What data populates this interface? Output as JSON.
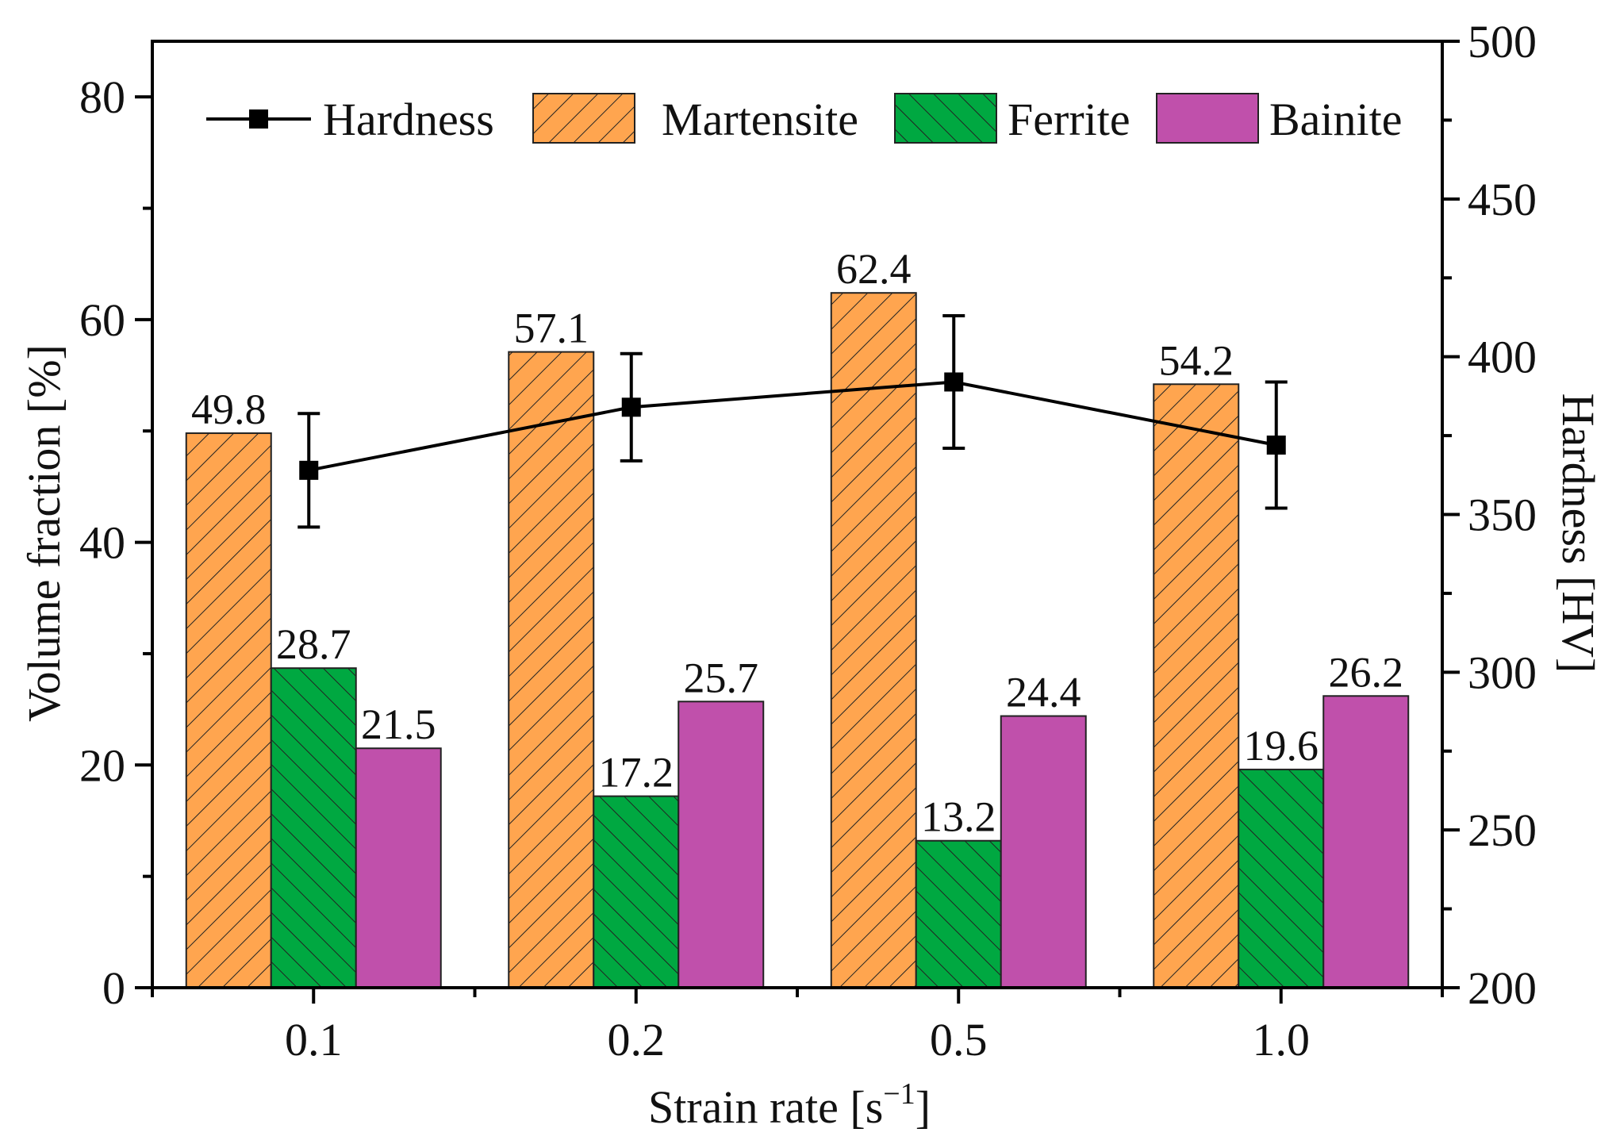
{
  "chart_data": {
    "type": "bar",
    "title": "",
    "categories": [
      "0.1",
      "0.2",
      "0.5",
      "1.0"
    ],
    "xlabel": {
      "base": "Strain rate [s",
      "sup": "−1",
      "end": "]"
    },
    "ylabel": "Volume fraction  [%]",
    "y2label": "Hardness [HV]",
    "ylim": [
      0,
      85
    ],
    "y2lim": [
      200,
      500
    ],
    "yticks": [
      0,
      20,
      40,
      60,
      80
    ],
    "y2ticks": [
      200,
      250,
      300,
      350,
      400,
      450,
      500
    ],
    "grid": false,
    "legend_position": "top",
    "series": [
      {
        "name": "Martensite",
        "values": [
          49.8,
          57.1,
          62.4,
          54.2
        ],
        "labels": [
          "49.8",
          "57.1",
          "62.4",
          "54.2"
        ],
        "color": "#FFA54F",
        "pattern": "hatch-forward"
      },
      {
        "name": "Ferrite",
        "values": [
          28.7,
          17.2,
          13.2,
          19.6
        ],
        "labels": [
          "28.7",
          "17.2",
          "13.2",
          "19.6"
        ],
        "color": "#00A841",
        "pattern": "hatch-backward"
      },
      {
        "name": "Bainite",
        "values": [
          21.5,
          25.7,
          24.4,
          26.2
        ],
        "labels": [
          "21.5",
          "25.7",
          "24.4",
          "26.2"
        ],
        "color": "#C050AB",
        "pattern": "solid"
      }
    ],
    "line_series": {
      "name": "Hardness",
      "axis": "right",
      "values": [
        364,
        384,
        392,
        372
      ],
      "error": [
        18,
        17,
        21,
        20
      ],
      "color": "#000000",
      "marker": "square"
    }
  }
}
